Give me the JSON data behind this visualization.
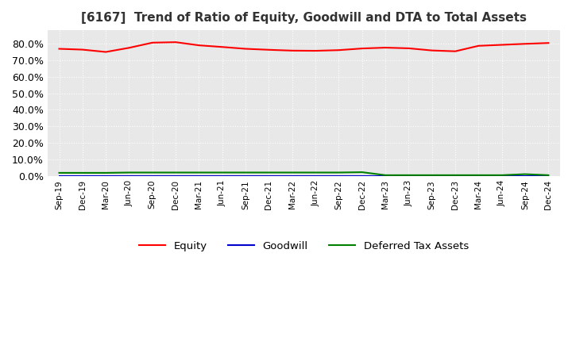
{
  "title": "[6167]  Trend of Ratio of Equity, Goodwill and DTA to Total Assets",
  "title_fontsize": 11,
  "ylim": [
    0.0,
    0.88
  ],
  "ytick_values": [
    0.0,
    0.1,
    0.2,
    0.3,
    0.4,
    0.5,
    0.6,
    0.7,
    0.8
  ],
  "background_color": "#ffffff",
  "plot_bg_color": "#e8e8e8",
  "grid_color": "#ffffff",
  "x_labels": [
    "Sep-19",
    "Dec-19",
    "Mar-20",
    "Jun-20",
    "Sep-20",
    "Dec-20",
    "Mar-21",
    "Jun-21",
    "Sep-21",
    "Dec-21",
    "Mar-22",
    "Jun-22",
    "Sep-22",
    "Dec-22",
    "Mar-23",
    "Jun-23",
    "Sep-23",
    "Dec-23",
    "Mar-24",
    "Jun-24",
    "Sep-24",
    "Dec-24"
  ],
  "equity": [
    0.768,
    0.763,
    0.749,
    0.774,
    0.805,
    0.808,
    0.789,
    0.779,
    0.768,
    0.762,
    0.757,
    0.756,
    0.76,
    0.77,
    0.775,
    0.771,
    0.758,
    0.753,
    0.786,
    0.792,
    0.798,
    0.803
  ],
  "goodwill": [
    0.0,
    0.0,
    0.0,
    0.0,
    0.0,
    0.0,
    0.0,
    0.0,
    0.0,
    0.0,
    0.0,
    0.0,
    0.0,
    0.0,
    0.0,
    0.0,
    0.0,
    0.0,
    0.0,
    0.0,
    0.0,
    0.0
  ],
  "dta": [
    0.02,
    0.02,
    0.02,
    0.022,
    0.022,
    0.022,
    0.022,
    0.022,
    0.022,
    0.022,
    0.022,
    0.022,
    0.022,
    0.024,
    0.006,
    0.006,
    0.006,
    0.006,
    0.006,
    0.006,
    0.012,
    0.006
  ],
  "equity_color": "#ff0000",
  "goodwill_color": "#0000cc",
  "dta_color": "#008000",
  "legend_labels": [
    "Equity",
    "Goodwill",
    "Deferred Tax Assets"
  ],
  "linewidth": 1.5
}
